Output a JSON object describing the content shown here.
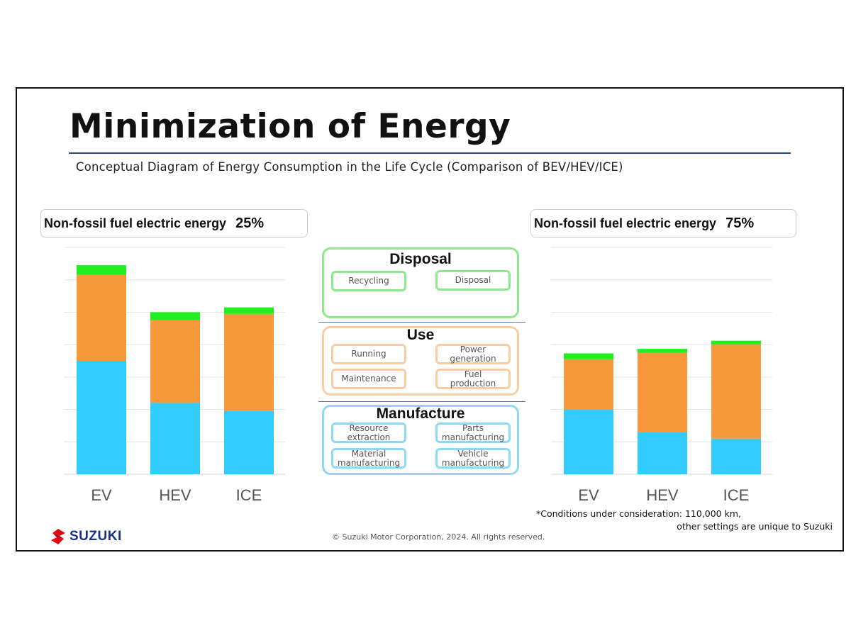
{
  "header": {
    "title": "Minimization of Energy",
    "subtitle": "Conceptual Diagram of Energy Consumption in the Life Cycle (Comparison of BEV/HEV/ICE)"
  },
  "panels": {
    "left": {
      "label": "Non-fossil fuel electric energy",
      "percent": "25%"
    },
    "right": {
      "label": "Non-fossil fuel electric energy",
      "percent": "75%"
    }
  },
  "colors": {
    "manufacture": "#33ccff",
    "use": "#f7993b",
    "disposal": "#22ee22",
    "gridline": "#e3e3e3",
    "title_rule": "#2c4a8a",
    "logo_red": "#e30613",
    "logo_blue": "#1a2f8a"
  },
  "chart_data": [
    {
      "type": "bar",
      "stacked": true,
      "categories": [
        "EV",
        "HEV",
        "ICE"
      ],
      "series": [
        {
          "name": "Manufacture",
          "values": [
            35,
            22,
            19.5
          ]
        },
        {
          "name": "Use",
          "values": [
            26.5,
            25.5,
            30
          ]
        },
        {
          "name": "Disposal",
          "values": [
            3,
            2.5,
            2
          ]
        }
      ],
      "ylim": [
        0,
        70
      ],
      "grid": true,
      "legend": "none"
    },
    {
      "type": "bar",
      "stacked": true,
      "categories": [
        "EV",
        "HEV",
        "ICE"
      ],
      "series": [
        {
          "name": "Manufacture",
          "values": [
            20,
            13,
            11
          ]
        },
        {
          "name": "Use",
          "values": [
            15.5,
            24.5,
            29
          ]
        },
        {
          "name": "Disposal",
          "values": [
            1.8,
            1.2,
            1.2
          ]
        }
      ],
      "ylim": [
        0,
        70
      ],
      "grid": true,
      "legend": "none"
    }
  ],
  "diagram": {
    "disposal": {
      "title": "Disposal",
      "items": [
        "Recycling",
        "Disposal"
      ]
    },
    "use": {
      "title": "Use",
      "items": [
        "Running",
        "Power\ngeneration",
        "Maintenance",
        "Fuel\nproduction"
      ]
    },
    "manufacture": {
      "title": "Manufacture",
      "items": [
        "Resource\nextraction",
        "Parts\nmanufacturing",
        "Material\nmanufacturing",
        "Vehicle\nmanufacturing"
      ]
    }
  },
  "footer": {
    "note_line1": "*Conditions under consideration: 110,000 km,",
    "note_line2": "other settings are unique to Suzuki",
    "copyright": "© Suzuki Motor Corporation, 2024. All rights reserved.",
    "logo_text": "SUZUKI"
  }
}
